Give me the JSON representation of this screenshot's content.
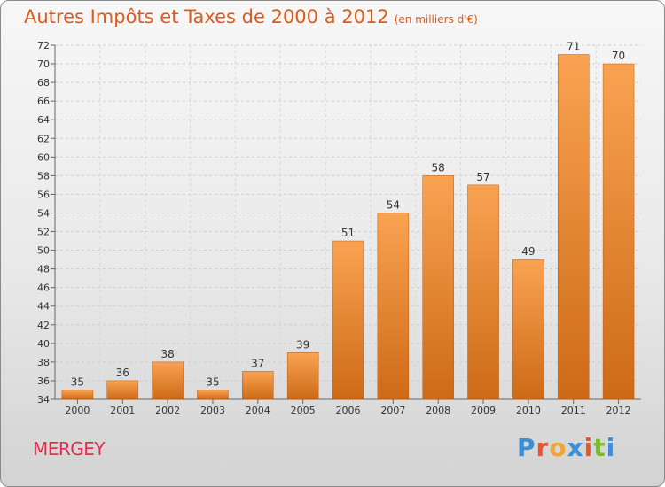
{
  "title": "Autres Impôts et Taxes de 2000 à 2012",
  "subtitle": "(en milliers d'€)",
  "commune": "MERGEY",
  "logo": {
    "text": "Proxiti",
    "letters": [
      "P",
      "r",
      "o",
      "x",
      "i",
      "t",
      "i"
    ],
    "colors": [
      "#3b8fd6",
      "#e8562a",
      "#f2a33a",
      "#3b8fd6",
      "#e8562a",
      "#7cb832",
      "#3b8fd6"
    ]
  },
  "colors": {
    "bar_light": "#f9a352",
    "bar_dark": "#cd6a17",
    "title": "#e05a1a",
    "commune": "#e0304e"
  },
  "chart_data": {
    "type": "bar",
    "categories": [
      "2000",
      "2001",
      "2002",
      "2003",
      "2004",
      "2005",
      "2006",
      "2007",
      "2008",
      "2009",
      "2010",
      "2011",
      "2012"
    ],
    "values": [
      35,
      36,
      38,
      35,
      37,
      39,
      51,
      54,
      58,
      57,
      49,
      71,
      70
    ],
    "ylim": [
      34,
      72
    ],
    "yticks": [
      34,
      36,
      38,
      40,
      42,
      44,
      46,
      48,
      50,
      52,
      54,
      56,
      58,
      60,
      62,
      64,
      66,
      68,
      70,
      72
    ],
    "grid": true,
    "xlabel": "",
    "ylabel": ""
  }
}
